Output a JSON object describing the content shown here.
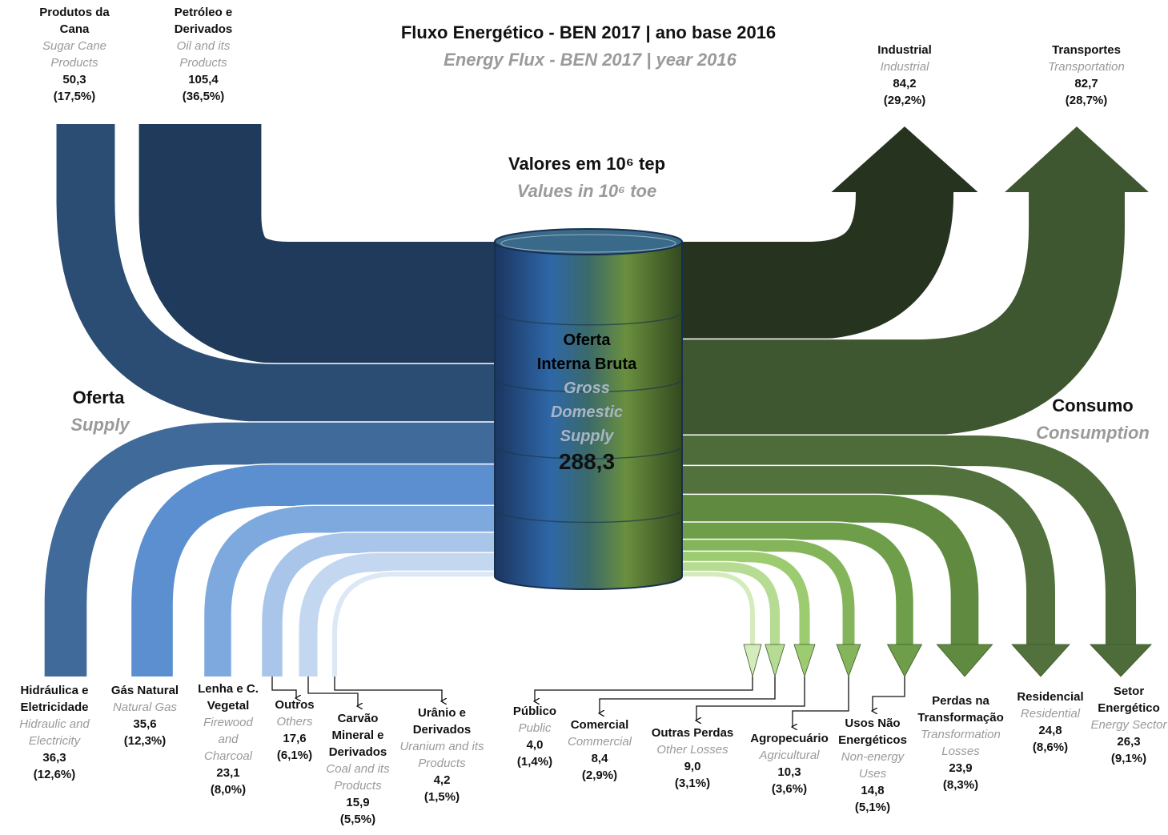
{
  "chart_data": {
    "type": "sankey",
    "title": "Fluxo Energético - BEN 2017 | ano base 2016",
    "subtitle": "Energy Flux - BEN 2017 | year 2016",
    "units": "Valores em 10⁶ tep",
    "units_en": "Values in 10⁶ toe",
    "center": {
      "name": "Oferta Interna Bruta",
      "name_en": "Gross Domestic Supply",
      "value": 288.3,
      "value_label": "288,3"
    },
    "supply": {
      "label": "Oferta",
      "label_en": "Supply",
      "nodes": [
        {
          "name": "Produtos da Cana",
          "name_en": "Sugar Cane Products",
          "value": 50.3,
          "value_label": "50,3",
          "share": 17.5,
          "share_label": "(17,5%)",
          "color": "#2b4c73"
        },
        {
          "name": "Petróleo e Derivados",
          "name_en": "Oil and its Products",
          "value": 105.4,
          "value_label": "105,4",
          "share": 36.5,
          "share_label": "(36,5%)",
          "color": "#1f3a5a"
        },
        {
          "name": "Hidráulica e Eletricidade",
          "name_en": "Hidraulic and Electricity",
          "value": 36.3,
          "value_label": "36,3",
          "share": 12.6,
          "share_label": "(12,6%)",
          "color": "#3f6a9a"
        },
        {
          "name": "Gás Natural",
          "name_en": "Natural Gas",
          "value": 35.6,
          "value_label": "35,6",
          "share": 12.3,
          "share_label": "(12,3%)",
          "color": "#5b8fcf"
        },
        {
          "name": "Lenha e C. Vegetal",
          "name_en": "Firewood and Charcoal",
          "value": 23.1,
          "value_label": "23,1",
          "share": 8.0,
          "share_label": "(8,0%)",
          "color": "#7ea9de"
        },
        {
          "name": "Outros",
          "name_en": "Others",
          "value": 17.6,
          "value_label": "17,6",
          "share": 6.1,
          "share_label": "(6,1%)",
          "color": "#a9c6ea"
        },
        {
          "name": "Carvão Mineral e Derivados",
          "name_en": "Coal and its Products",
          "value": 15.9,
          "value_label": "15,9",
          "share": 5.5,
          "share_label": "(5,5%)",
          "color": "#c3d8f0"
        },
        {
          "name": "Urânio e Derivados",
          "name_en": "Uranium and its Products",
          "value": 4.2,
          "value_label": "4,2",
          "share": 1.5,
          "share_label": "(1,5%)",
          "color": "#dce8f6"
        }
      ]
    },
    "consumption": {
      "label": "Consumo",
      "label_en": "Consumption",
      "nodes": [
        {
          "name": "Industrial",
          "name_en": "Industrial",
          "value": 84.2,
          "value_label": "84,2",
          "share": 29.2,
          "share_label": "(29,2%)",
          "color": "#26331f"
        },
        {
          "name": "Transportes",
          "name_en": "Transportation",
          "value": 82.7,
          "value_label": "82,7",
          "share": 28.7,
          "share_label": "(28,7%)",
          "color": "#3e5730"
        },
        {
          "name": "Público",
          "name_en": "Public",
          "value": 4.0,
          "value_label": "4,0",
          "share": 1.4,
          "share_label": "(1,4%)",
          "color": "#d4ebbb"
        },
        {
          "name": "Comercial",
          "name_en": "Commercial",
          "value": 8.4,
          "value_label": "8,4",
          "share": 2.9,
          "share_label": "(2,9%)",
          "color": "#b5dc92"
        },
        {
          "name": "Outras Perdas",
          "name_en": "Other Losses",
          "value": 9.0,
          "value_label": "9,0",
          "share": 3.1,
          "share_label": "(3,1%)",
          "color": "#9ccb70"
        },
        {
          "name": "Agropecuário",
          "name_en": "Agricultural",
          "value": 10.3,
          "value_label": "10,3",
          "share": 3.6,
          "share_label": "(3,6%)",
          "color": "#84b55a"
        },
        {
          "name": "Usos Não Energéticos",
          "name_en": "Non-energy Uses",
          "value": 14.8,
          "value_label": "14,8",
          "share": 5.1,
          "share_label": "(5,1%)",
          "color": "#6f9e4a"
        },
        {
          "name": "Perdas na Transformação",
          "name_en": "Transformation Losses",
          "value": 23.9,
          "value_label": "23,9",
          "share": 8.3,
          "share_label": "(8,3%)",
          "color": "#5f8a40"
        },
        {
          "name": "Residencial",
          "name_en": "Residential",
          "value": 24.8,
          "value_label": "24,8",
          "share": 8.6,
          "share_label": "(8,6%)",
          "color": "#52713c"
        },
        {
          "name": "Setor Energético",
          "name_en": "Energy Sector",
          "value": 26.3,
          "value_label": "26,3",
          "share": 9.1,
          "share_label": "(9,1%)",
          "color": "#4e6b3a"
        }
      ]
    }
  }
}
